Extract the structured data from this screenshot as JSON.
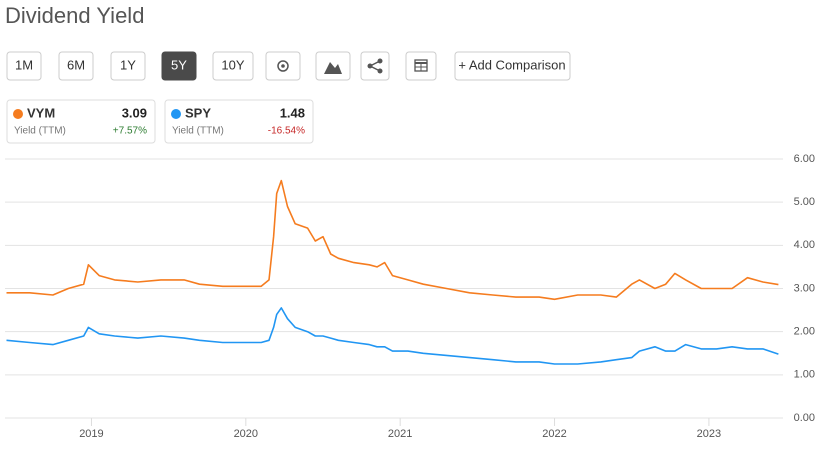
{
  "chart_data": {
    "type": "line",
    "title": "Dividend Yield",
    "toolbar": {
      "ranges": [
        "1M",
        "6M",
        "1Y",
        "5Y",
        "10Y"
      ],
      "active_index": 3,
      "comparison": "+ Add Comparison"
    },
    "x": [
      2018.45,
      2018.6,
      2018.75,
      2018.85,
      2018.95,
      2018.98,
      2019.05,
      2019.15,
      2019.3,
      2019.45,
      2019.6,
      2019.7,
      2019.85,
      2020.0,
      2020.1,
      2020.15,
      2020.18,
      2020.2,
      2020.23,
      2020.27,
      2020.32,
      2020.4,
      2020.45,
      2020.5,
      2020.55,
      2020.6,
      2020.7,
      2020.8,
      2020.85,
      2020.9,
      2020.95,
      2021.05,
      2021.15,
      2021.3,
      2021.45,
      2021.6,
      2021.75,
      2021.9,
      2022.0,
      2022.15,
      2022.3,
      2022.4,
      2022.5,
      2022.55,
      2022.65,
      2022.72,
      2022.78,
      2022.85,
      2022.95,
      2023.05,
      2023.15,
      2023.25,
      2023.35,
      2023.45
    ],
    "series": [
      {
        "name": "VYM",
        "color": "#f57c1f",
        "metric": "Yield (TTM)",
        "last": 3.09,
        "change": "+7.57%",
        "change_color": "#2e7d32",
        "values": [
          2.9,
          2.9,
          2.85,
          3.0,
          3.1,
          3.55,
          3.3,
          3.2,
          3.15,
          3.2,
          3.2,
          3.1,
          3.05,
          3.05,
          3.05,
          3.2,
          4.2,
          5.2,
          5.5,
          4.9,
          4.5,
          4.4,
          4.1,
          4.2,
          3.8,
          3.7,
          3.6,
          3.55,
          3.5,
          3.6,
          3.3,
          3.2,
          3.1,
          3.0,
          2.9,
          2.85,
          2.8,
          2.8,
          2.75,
          2.85,
          2.85,
          2.8,
          3.1,
          3.2,
          3.0,
          3.1,
          3.35,
          3.2,
          3.0,
          3.0,
          3.0,
          3.25,
          3.15,
          3.09
        ]
      },
      {
        "name": "SPY",
        "color": "#2196f3",
        "metric": "Yield (TTM)",
        "last": 1.48,
        "change": "-16.54%",
        "change_color": "#c62828",
        "values": [
          1.8,
          1.75,
          1.7,
          1.8,
          1.9,
          2.1,
          1.95,
          1.9,
          1.85,
          1.9,
          1.85,
          1.8,
          1.75,
          1.75,
          1.75,
          1.8,
          2.1,
          2.4,
          2.55,
          2.3,
          2.1,
          2.0,
          1.9,
          1.9,
          1.85,
          1.8,
          1.75,
          1.7,
          1.65,
          1.65,
          1.55,
          1.55,
          1.5,
          1.45,
          1.4,
          1.35,
          1.3,
          1.3,
          1.25,
          1.25,
          1.3,
          1.35,
          1.4,
          1.55,
          1.65,
          1.55,
          1.55,
          1.7,
          1.6,
          1.6,
          1.65,
          1.6,
          1.6,
          1.48
        ]
      }
    ],
    "xlim": [
      2018.44,
      2023.48
    ],
    "xticks": [
      2019,
      2020,
      2021,
      2022,
      2023
    ],
    "ylim": [
      0,
      6
    ],
    "yticks": [
      {
        "value": 0,
        "label": "0.00"
      },
      {
        "value": 1,
        "label": "1.00"
      },
      {
        "value": 2,
        "label": "2.00"
      },
      {
        "value": 3,
        "label": "3.00"
      },
      {
        "value": 4,
        "label": "4.00"
      },
      {
        "value": 5,
        "label": "5.00"
      },
      {
        "value": 6,
        "label": "6.00"
      }
    ],
    "grid": true
  }
}
